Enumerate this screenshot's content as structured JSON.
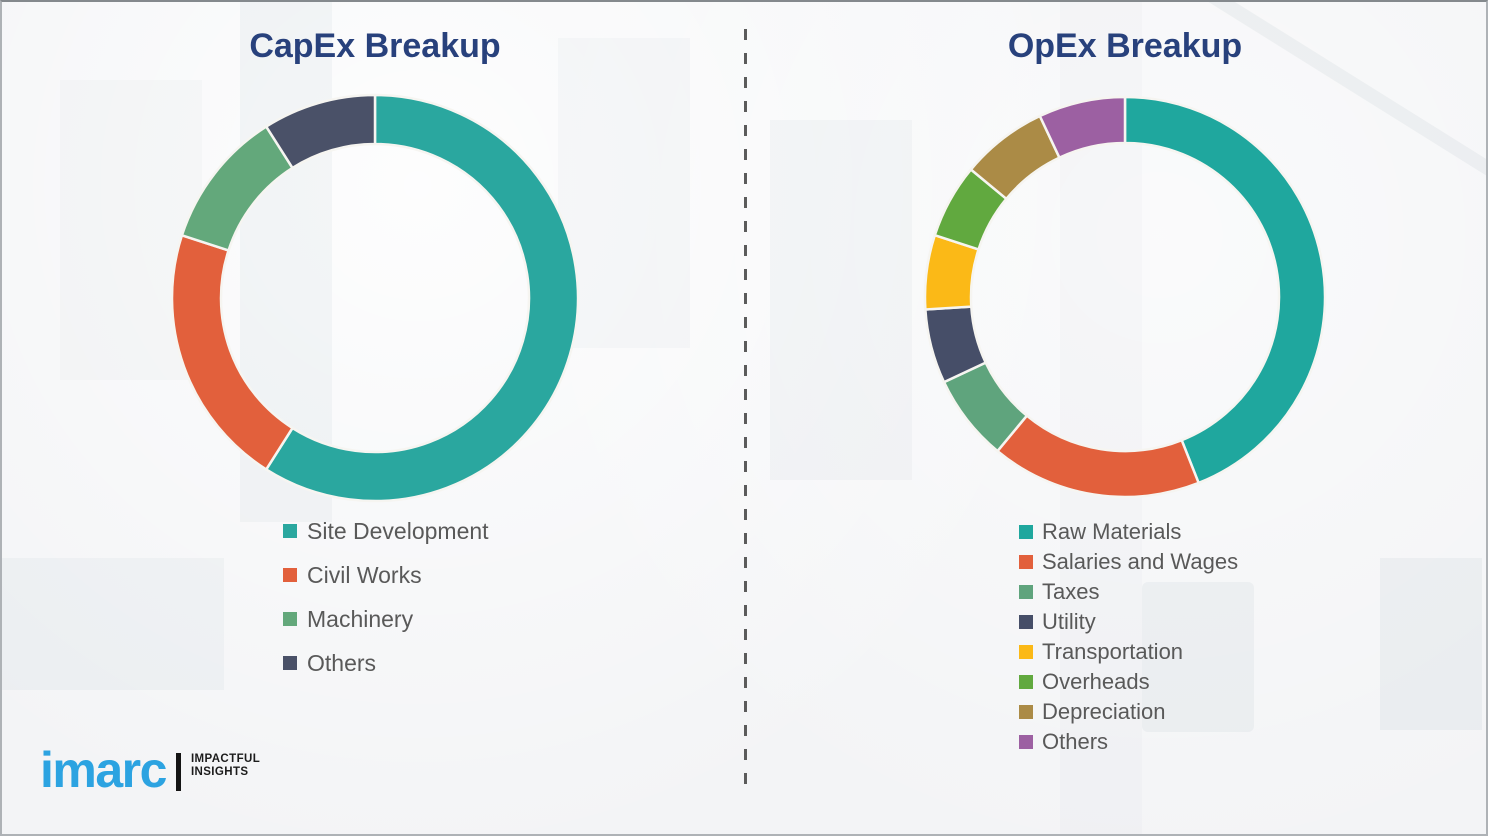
{
  "styles": {
    "background_color": "#f3f4f6",
    "title_color": "#28417C",
    "legend_text_color": "#595959",
    "divider_color": "#5B5B5B",
    "segment_gap_color": "#F6F5F1"
  },
  "chart_data": [
    {
      "type": "pie",
      "donut": true,
      "title": "CapEx Breakup",
      "labels": [
        "Site Development",
        "Civil Works",
        "Machinery",
        "Others"
      ],
      "values": [
        59,
        21,
        11,
        9
      ],
      "colors": [
        "#2AA79F",
        "#E2603C",
        "#63A87B",
        "#4A5168"
      ],
      "legend_position": "bottom-left",
      "start_angle_deg": 0,
      "direction": "clockwise"
    },
    {
      "type": "pie",
      "donut": true,
      "title": "OpEx Breakup",
      "labels": [
        "Raw Materials",
        "Salaries and Wages",
        "Taxes",
        "Utility",
        "Transportation",
        "Overheads",
        "Depreciation",
        "Others"
      ],
      "values": [
        44,
        17,
        7,
        6,
        6,
        6,
        7,
        7
      ],
      "colors": [
        "#1FA79E",
        "#E2603C",
        "#5FA47D",
        "#464E68",
        "#FBB917",
        "#61A93F",
        "#AB8B46",
        "#9C60A2"
      ],
      "legend_position": "bottom-left",
      "start_angle_deg": 0,
      "direction": "clockwise"
    }
  ],
  "branding": {
    "logo_text": "imarc",
    "tagline": [
      "IMPACTFUL",
      "INSIGHTS"
    ],
    "logo_color": "#2CA3E1"
  }
}
